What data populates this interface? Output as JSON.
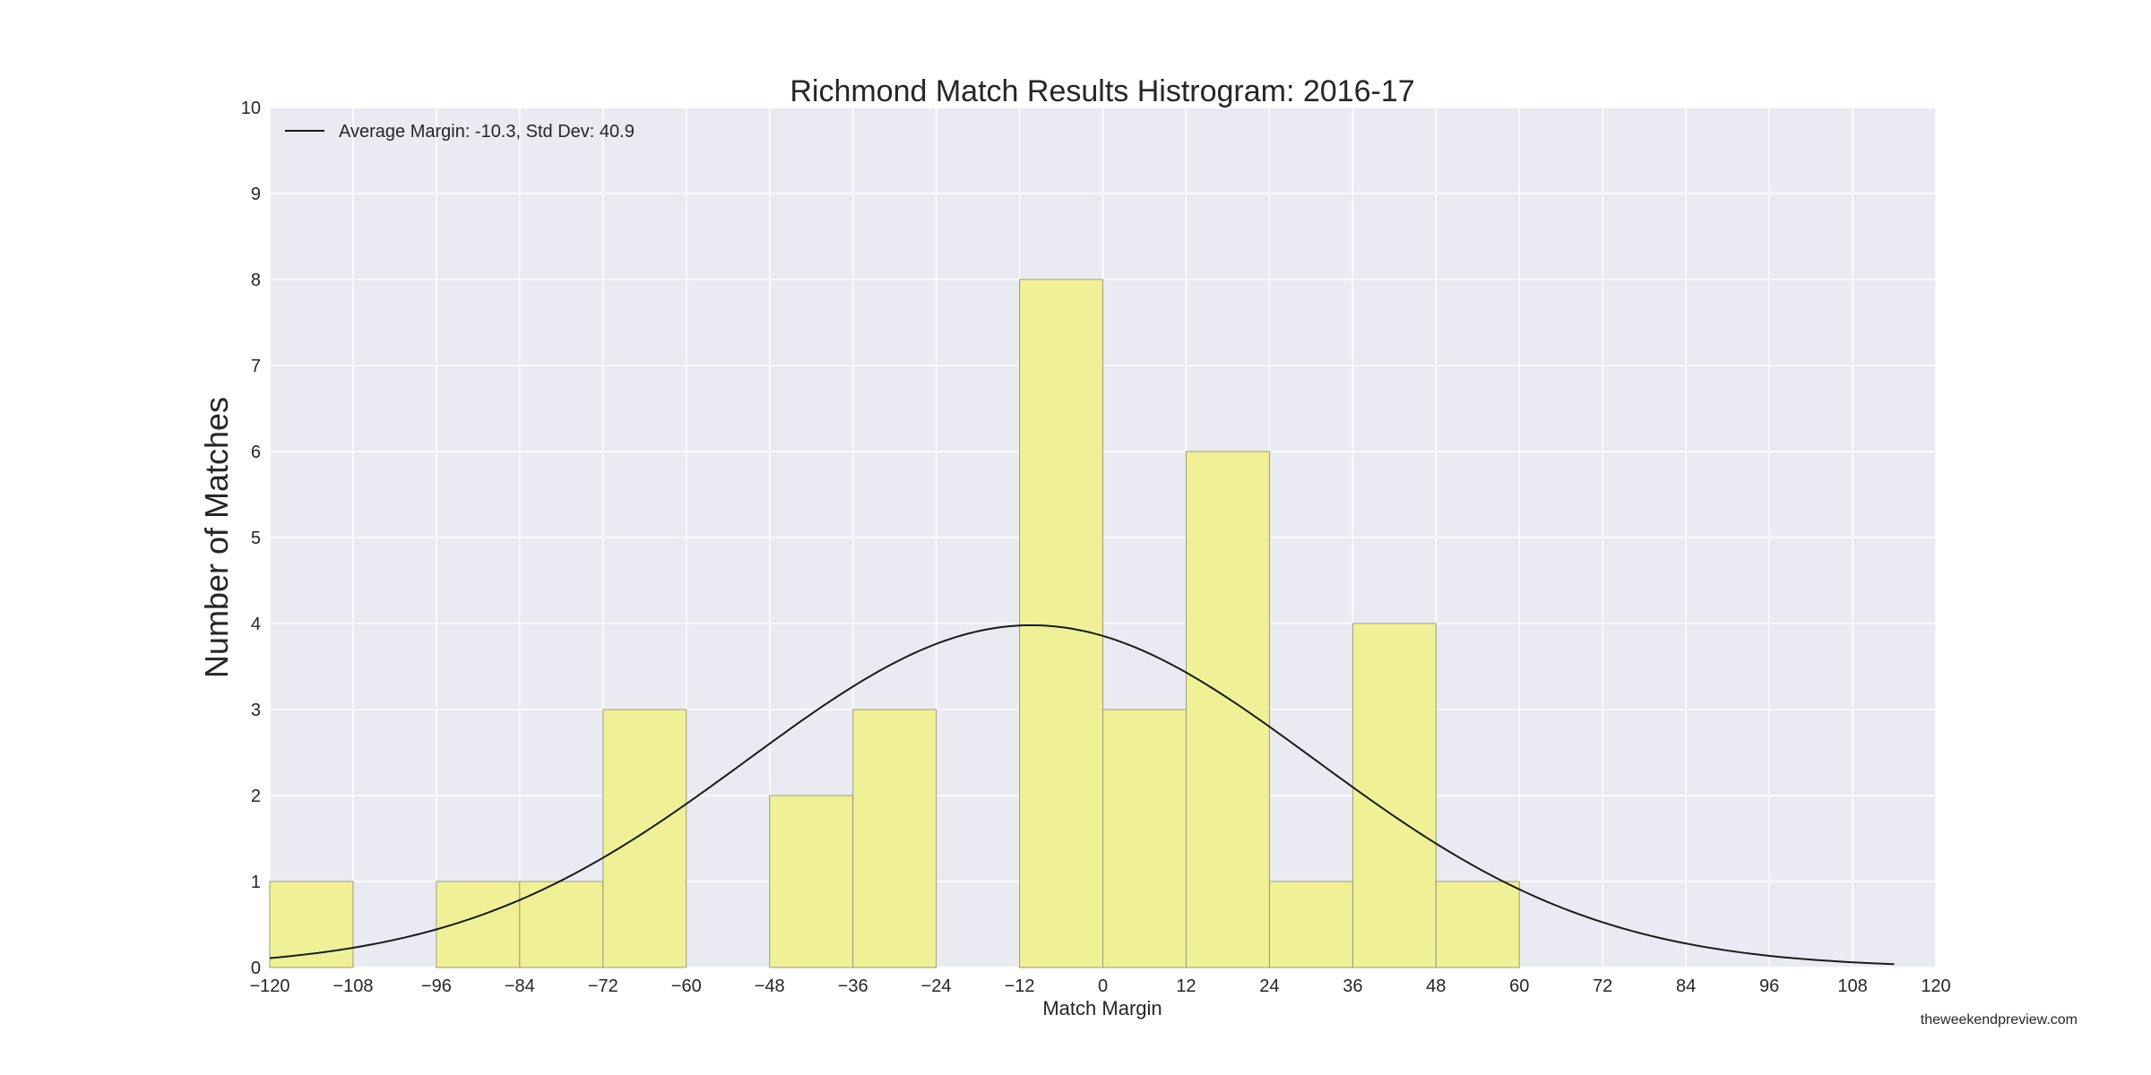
{
  "chart_data": {
    "type": "bar",
    "title": "Richmond Match Results Histrogram: 2016-17",
    "xlabel": "Match Margin",
    "ylabel": "Number of Matches",
    "xlim": [
      -120,
      120
    ],
    "ylim": [
      0,
      10
    ],
    "xticks": [
      -120,
      -108,
      -96,
      -84,
      -72,
      -60,
      -48,
      -36,
      -24,
      -12,
      0,
      12,
      24,
      36,
      48,
      60,
      72,
      84,
      96,
      108,
      120
    ],
    "yticks": [
      0,
      1,
      2,
      3,
      4,
      5,
      6,
      7,
      8,
      9,
      10
    ],
    "grid": true,
    "bin_width": 12,
    "bins": [
      {
        "start": -120,
        "count": 1
      },
      {
        "start": -96,
        "count": 1
      },
      {
        "start": -84,
        "count": 1
      },
      {
        "start": -72,
        "count": 3
      },
      {
        "start": -48,
        "count": 2
      },
      {
        "start": -36,
        "count": 3
      },
      {
        "start": -12,
        "count": 8
      },
      {
        "start": 0,
        "count": 3
      },
      {
        "start": 12,
        "count": 6
      },
      {
        "start": 24,
        "count": 1
      },
      {
        "start": 36,
        "count": 4
      },
      {
        "start": 48,
        "count": 1
      }
    ],
    "fit_curve": {
      "type": "normal",
      "mean": -10.3,
      "std": 40.9,
      "peak": 3.98,
      "x_range": [
        -120,
        114
      ]
    },
    "legend": {
      "placement": "top-left",
      "entries": [
        "Average Margin: -10.3, Std Dev: 40.9"
      ]
    },
    "colors": {
      "bar_fill": "#f0f096",
      "bar_edge": "#9a9a7a",
      "curve": "#1a1a1a",
      "plot_bg": "#eaeaf2",
      "grid": "#ffffff"
    }
  },
  "footer": {
    "credit": "theweekendpreview.com"
  }
}
